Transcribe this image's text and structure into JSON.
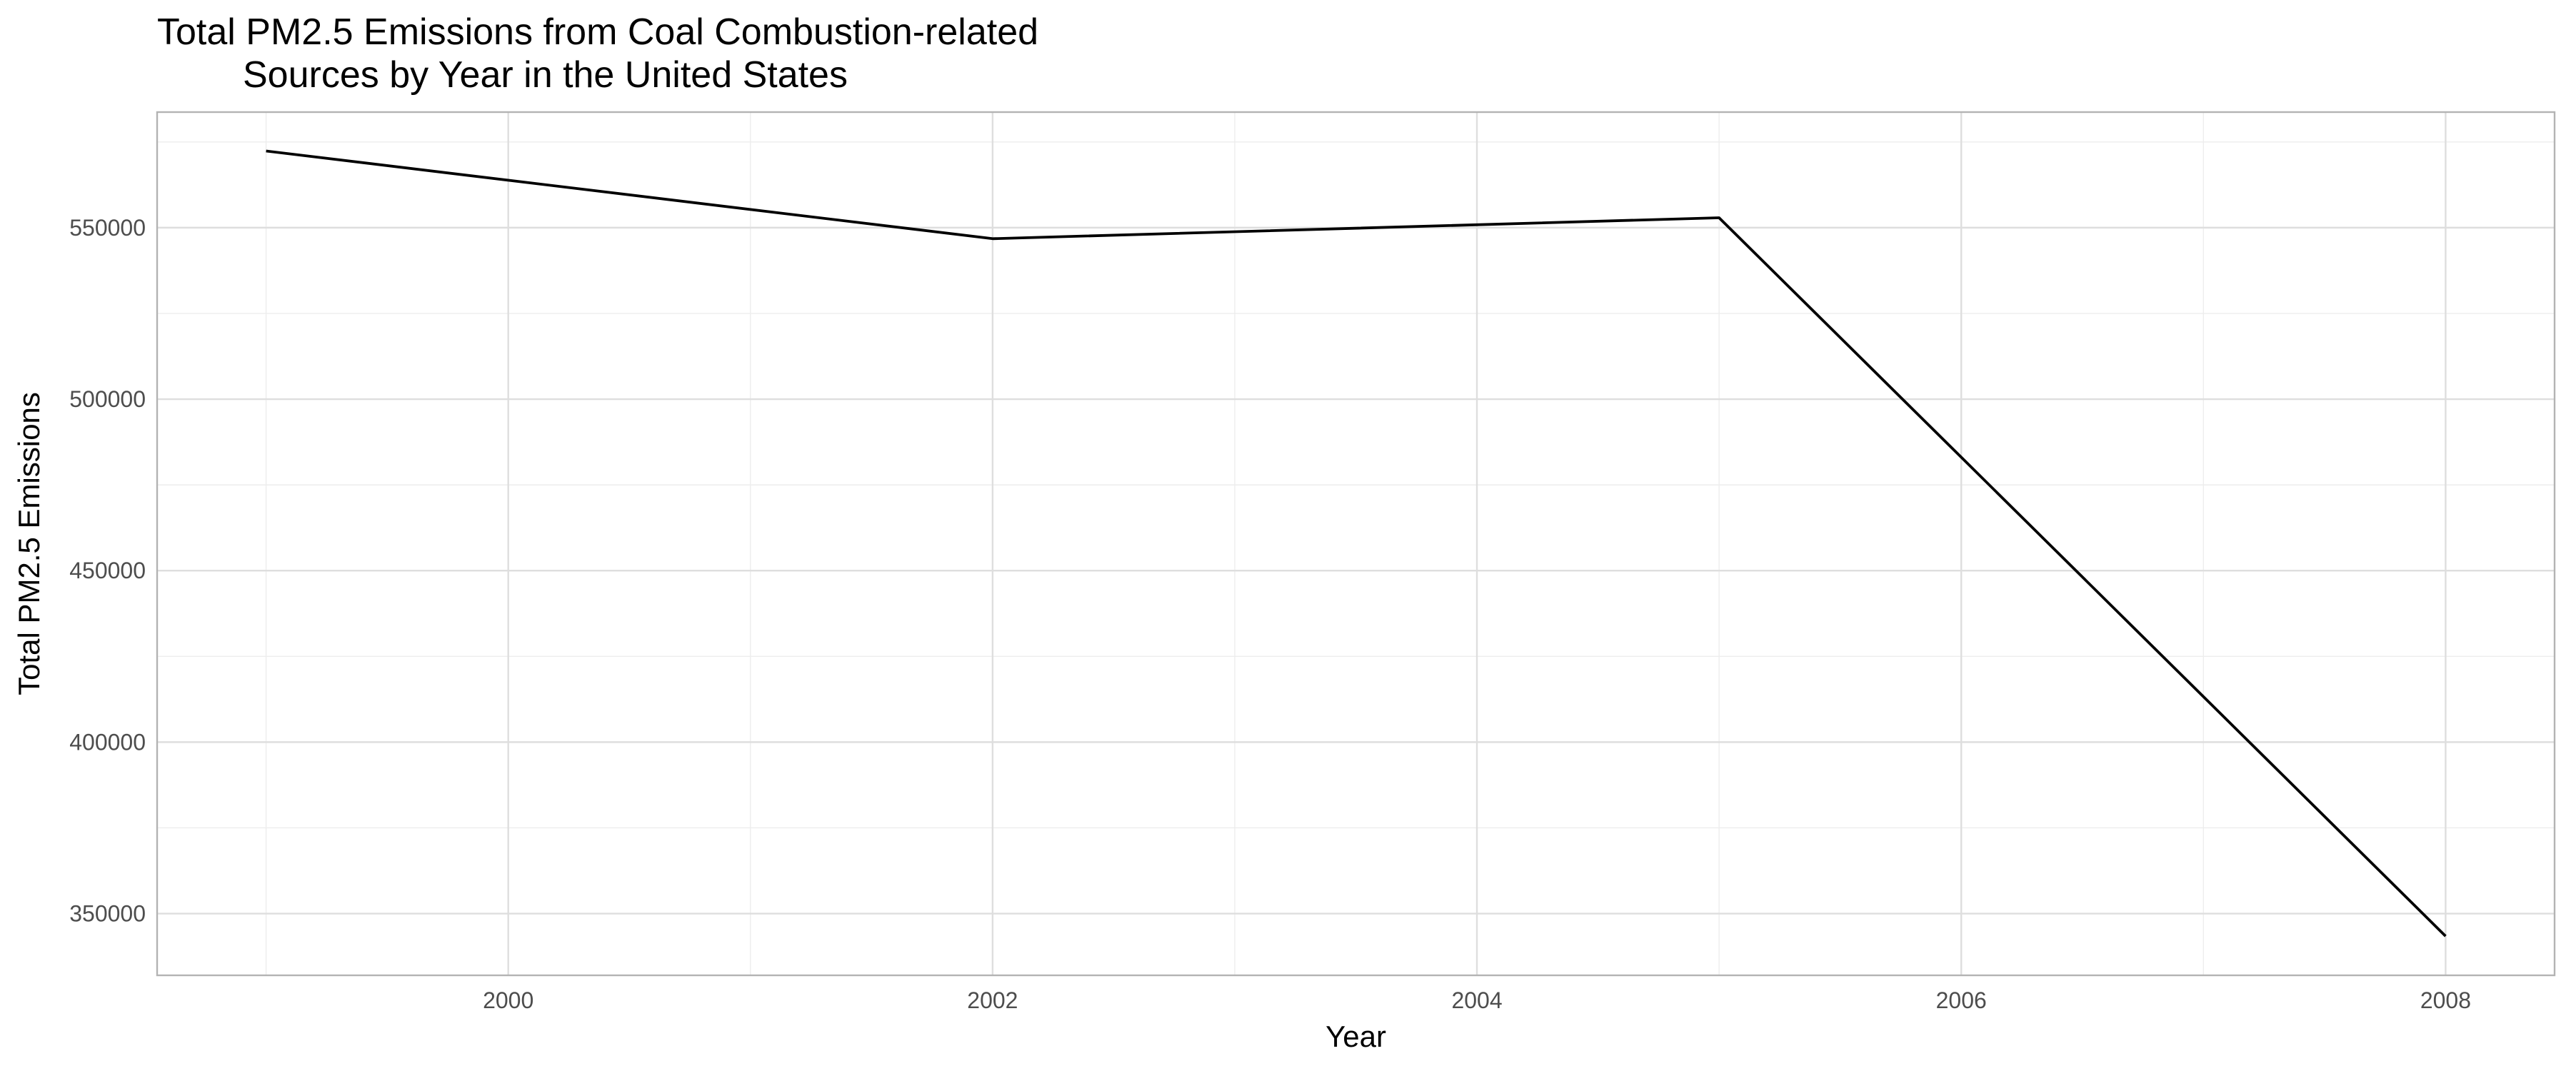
{
  "chart_data": {
    "type": "line",
    "title_lines": [
      "Total PM2.5 Emissions from Coal Combustion-related",
      "Sources by Year in the United States"
    ],
    "xlabel": "Year",
    "ylabel": "Total PM2.5 Emissions",
    "x": [
      1999,
      2002,
      2005,
      2008
    ],
    "y": [
      572346,
      546789,
      552881,
      343432
    ],
    "x_ticks": [
      2000,
      2002,
      2004,
      2006,
      2008
    ],
    "y_ticks": [
      350000,
      400000,
      450000,
      500000,
      550000
    ],
    "xlim": [
      1998.55,
      2008.45
    ],
    "ylim": [
      332000,
      583700
    ],
    "grid": true,
    "legend": "none",
    "line_color": "#000000"
  }
}
